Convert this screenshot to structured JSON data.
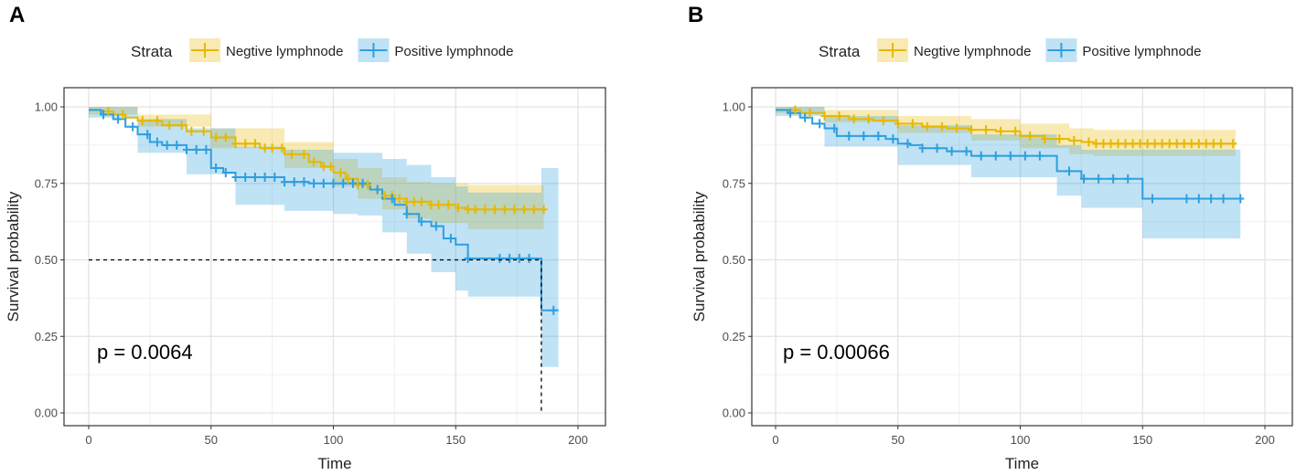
{
  "chart_data": [
    {
      "type": "kaplan-meier",
      "panel": "A",
      "legend_title": "Strata",
      "xlabel": "Time",
      "ylabel": "Survival probability",
      "xlim": [
        0,
        200
      ],
      "ylim": [
        0,
        1
      ],
      "x_ticks": [
        "0",
        "50",
        "100",
        "150",
        "200"
      ],
      "y_ticks": [
        "0.00",
        "0.25",
        "0.50",
        "0.75",
        "1.00"
      ],
      "pvalue_label": "p = 0.0064",
      "median_line": {
        "y": 0.5,
        "x": 185
      },
      "series": [
        {
          "name": "Negtive lymphnode",
          "color": "#E7B800",
          "steps": [
            [
              0,
              0.99
            ],
            [
              5,
              0.985
            ],
            [
              10,
              0.975
            ],
            [
              15,
              0.965
            ],
            [
              20,
              0.955
            ],
            [
              30,
              0.94
            ],
            [
              40,
              0.92
            ],
            [
              50,
              0.9
            ],
            [
              60,
              0.88
            ],
            [
              70,
              0.865
            ],
            [
              80,
              0.845
            ],
            [
              90,
              0.82
            ],
            [
              95,
              0.805
            ],
            [
              100,
              0.785
            ],
            [
              105,
              0.765
            ],
            [
              110,
              0.745
            ],
            [
              115,
              0.73
            ],
            [
              120,
              0.71
            ],
            [
              125,
              0.7
            ],
            [
              130,
              0.69
            ],
            [
              140,
              0.68
            ],
            [
              150,
              0.67
            ],
            [
              155,
              0.665
            ],
            [
              186,
              0.665
            ]
          ],
          "ci_upper": [
            [
              0,
              1
            ],
            [
              20,
              0.975
            ],
            [
              50,
              0.93
            ],
            [
              80,
              0.885
            ],
            [
              100,
              0.83
            ],
            [
              110,
              0.8
            ],
            [
              120,
              0.77
            ],
            [
              130,
              0.755
            ],
            [
              140,
              0.75
            ],
            [
              155,
              0.745
            ],
            [
              186,
              0.745
            ]
          ],
          "ci_lower": [
            [
              0,
              0.975
            ],
            [
              20,
              0.935
            ],
            [
              50,
              0.865
            ],
            [
              80,
              0.8
            ],
            [
              100,
              0.74
            ],
            [
              110,
              0.7
            ],
            [
              120,
              0.665
            ],
            [
              130,
              0.635
            ],
            [
              140,
              0.62
            ],
            [
              155,
              0.6
            ],
            [
              186,
              0.6
            ]
          ],
          "censor": [
            8,
            14,
            22,
            28,
            33,
            38,
            42,
            47,
            52,
            56,
            60,
            64,
            68,
            72,
            75,
            79,
            83,
            88,
            92,
            96,
            99,
            103,
            106,
            110,
            114,
            118,
            121,
            124,
            127,
            130,
            133,
            136,
            140,
            143,
            147,
            151,
            155,
            158,
            162,
            166,
            170,
            174,
            178,
            182,
            186
          ]
        },
        {
          "name": "Positive lymphnode",
          "color": "#2E9FDF",
          "steps": [
            [
              0,
              0.99
            ],
            [
              5,
              0.975
            ],
            [
              10,
              0.96
            ],
            [
              15,
              0.935
            ],
            [
              20,
              0.91
            ],
            [
              25,
              0.885
            ],
            [
              30,
              0.875
            ],
            [
              40,
              0.86
            ],
            [
              50,
              0.8
            ],
            [
              55,
              0.785
            ],
            [
              60,
              0.77
            ],
            [
              70,
              0.77
            ],
            [
              80,
              0.755
            ],
            [
              90,
              0.75
            ],
            [
              110,
              0.75
            ],
            [
              115,
              0.73
            ],
            [
              120,
              0.7
            ],
            [
              125,
              0.68
            ],
            [
              130,
              0.65
            ],
            [
              135,
              0.625
            ],
            [
              140,
              0.61
            ],
            [
              145,
              0.57
            ],
            [
              150,
              0.55
            ],
            [
              155,
              0.505
            ],
            [
              185,
              0.505
            ],
            [
              185,
              0.335
            ],
            [
              192,
              0.335
            ]
          ],
          "ci_upper": [
            [
              0,
              1
            ],
            [
              20,
              0.96
            ],
            [
              40,
              0.93
            ],
            [
              60,
              0.87
            ],
            [
              80,
              0.86
            ],
            [
              100,
              0.85
            ],
            [
              110,
              0.85
            ],
            [
              120,
              0.83
            ],
            [
              130,
              0.81
            ],
            [
              140,
              0.77
            ],
            [
              150,
              0.74
            ],
            [
              155,
              0.72
            ],
            [
              185,
              0.72
            ],
            [
              185,
              0.8
            ],
            [
              192,
              0.8
            ]
          ],
          "ci_lower": [
            [
              0,
              0.965
            ],
            [
              20,
              0.85
            ],
            [
              40,
              0.78
            ],
            [
              60,
              0.68
            ],
            [
              80,
              0.66
            ],
            [
              100,
              0.65
            ],
            [
              110,
              0.645
            ],
            [
              120,
              0.59
            ],
            [
              130,
              0.52
            ],
            [
              140,
              0.46
            ],
            [
              150,
              0.4
            ],
            [
              155,
              0.38
            ],
            [
              185,
              0.38
            ],
            [
              185,
              0.15
            ],
            [
              192,
              0.15
            ]
          ],
          "censor": [
            6,
            12,
            18,
            24,
            28,
            32,
            36,
            40,
            44,
            48,
            52,
            56,
            60,
            64,
            68,
            72,
            76,
            80,
            84,
            88,
            92,
            96,
            100,
            104,
            108,
            112,
            118,
            124,
            130,
            136,
            142,
            148,
            155,
            168,
            172,
            176,
            180,
            190
          ]
        }
      ]
    },
    {
      "type": "kaplan-meier",
      "panel": "B",
      "legend_title": "Strata",
      "xlabel": "Time",
      "ylabel": "Survival probability",
      "xlim": [
        0,
        200
      ],
      "ylim": [
        0,
        1
      ],
      "x_ticks": [
        "0",
        "50",
        "100",
        "150",
        "200"
      ],
      "y_ticks": [
        "0.00",
        "0.25",
        "0.50",
        "0.75",
        "1.00"
      ],
      "pvalue_label": "p = 0.00066",
      "series": [
        {
          "name": "Negtive lymphnode",
          "color": "#E7B800",
          "steps": [
            [
              0,
              0.99
            ],
            [
              10,
              0.98
            ],
            [
              20,
              0.97
            ],
            [
              30,
              0.96
            ],
            [
              40,
              0.955
            ],
            [
              50,
              0.945
            ],
            [
              60,
              0.935
            ],
            [
              70,
              0.93
            ],
            [
              80,
              0.925
            ],
            [
              90,
              0.92
            ],
            [
              100,
              0.905
            ],
            [
              110,
              0.895
            ],
            [
              120,
              0.89
            ],
            [
              125,
              0.885
            ],
            [
              130,
              0.88
            ],
            [
              188,
              0.88
            ]
          ],
          "ci_upper": [
            [
              0,
              1
            ],
            [
              20,
              0.99
            ],
            [
              50,
              0.97
            ],
            [
              80,
              0.96
            ],
            [
              100,
              0.945
            ],
            [
              120,
              0.93
            ],
            [
              130,
              0.925
            ],
            [
              188,
              0.925
            ]
          ],
          "ci_lower": [
            [
              0,
              0.98
            ],
            [
              20,
              0.95
            ],
            [
              50,
              0.915
            ],
            [
              80,
              0.89
            ],
            [
              100,
              0.865
            ],
            [
              120,
              0.845
            ],
            [
              130,
              0.84
            ],
            [
              188,
              0.84
            ]
          ],
          "censor": [
            8,
            14,
            20,
            26,
            32,
            38,
            44,
            50,
            56,
            62,
            68,
            74,
            80,
            86,
            92,
            98,
            104,
            110,
            116,
            122,
            128,
            131,
            134,
            137,
            140,
            143,
            146,
            149,
            152,
            155,
            158,
            161,
            164,
            167,
            170,
            173,
            176,
            179,
            182,
            187
          ]
        },
        {
          "name": "Positive lymphnode",
          "color": "#2E9FDF",
          "steps": [
            [
              0,
              0.99
            ],
            [
              5,
              0.98
            ],
            [
              10,
              0.965
            ],
            [
              15,
              0.945
            ],
            [
              20,
              0.93
            ],
            [
              25,
              0.905
            ],
            [
              45,
              0.895
            ],
            [
              50,
              0.88
            ],
            [
              55,
              0.875
            ],
            [
              60,
              0.865
            ],
            [
              70,
              0.855
            ],
            [
              80,
              0.84
            ],
            [
              110,
              0.84
            ],
            [
              115,
              0.79
            ],
            [
              125,
              0.765
            ],
            [
              150,
              0.765
            ],
            [
              150,
              0.7
            ],
            [
              190,
              0.7
            ]
          ],
          "ci_upper": [
            [
              0,
              1
            ],
            [
              20,
              0.97
            ],
            [
              50,
              0.94
            ],
            [
              80,
              0.91
            ],
            [
              110,
              0.91
            ],
            [
              115,
              0.875
            ],
            [
              125,
              0.86
            ],
            [
              150,
              0.86
            ],
            [
              190,
              0.86
            ]
          ],
          "ci_lower": [
            [
              0,
              0.97
            ],
            [
              20,
              0.87
            ],
            [
              50,
              0.81
            ],
            [
              80,
              0.77
            ],
            [
              110,
              0.77
            ],
            [
              115,
              0.71
            ],
            [
              125,
              0.67
            ],
            [
              150,
              0.67
            ],
            [
              150,
              0.57
            ],
            [
              190,
              0.57
            ]
          ],
          "censor": [
            6,
            12,
            18,
            24,
            30,
            36,
            42,
            48,
            54,
            60,
            66,
            72,
            78,
            84,
            90,
            96,
            102,
            108,
            120,
            126,
            132,
            138,
            144,
            154,
            168,
            173,
            178,
            183,
            190
          ]
        }
      ]
    }
  ]
}
